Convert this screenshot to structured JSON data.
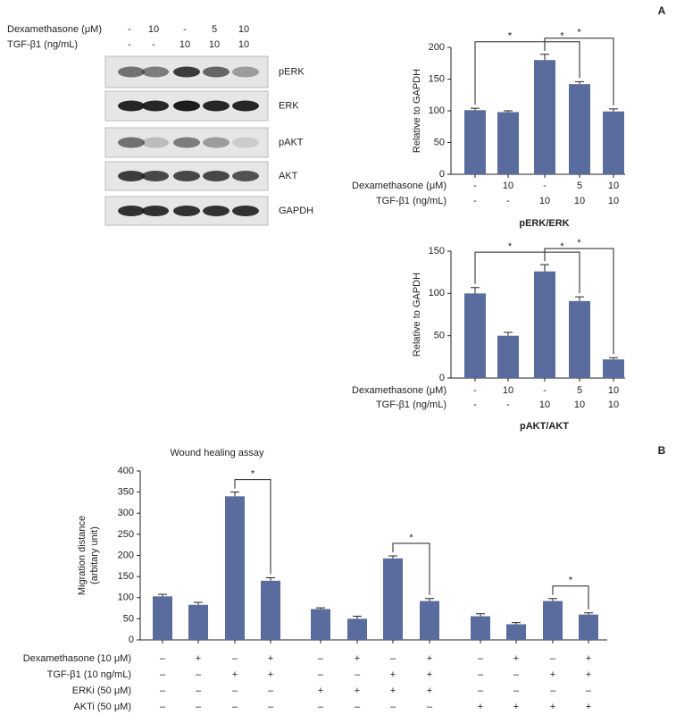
{
  "panel_labels": [
    "A",
    "B"
  ],
  "blot": {
    "conditions": [
      {
        "label": "Dexamethasone (μM)",
        "cells": [
          "-",
          "10",
          "-",
          "5",
          "10"
        ]
      },
      {
        "label": "TGF-β1 (ng/mL)",
        "cells": [
          "-",
          "-",
          "10",
          "10",
          "10"
        ]
      }
    ],
    "bands": [
      "pERK",
      "ERK",
      "pAKT",
      "AKT",
      "GAPDH"
    ]
  },
  "chart_data": [
    {
      "type": "bar",
      "xlabel": "pERK/ERK",
      "ylabel": "Relative to GAPDH",
      "values": [
        101,
        98,
        180,
        142,
        99
      ],
      "errors": [
        3,
        2,
        9,
        4,
        4
      ],
      "color": "#5a6b9d",
      "ylim": [
        0,
        200
      ],
      "yticks": [
        0,
        50,
        100,
        150,
        200
      ],
      "conditions": [
        {
          "label": "Dexamethasone (μM)",
          "cells": [
            "-",
            "10",
            "-",
            "5",
            "10"
          ]
        },
        {
          "label": "TGF-β1 (ng/mL)",
          "cells": [
            "-",
            "-",
            "10",
            "10",
            "10"
          ]
        }
      ],
      "significance": [
        {
          "bars": [
            0,
            2
          ],
          "label": "*"
        },
        {
          "bars": [
            2,
            3
          ],
          "label": "*"
        },
        {
          "bars": [
            2,
            4
          ],
          "label": "*"
        }
      ]
    },
    {
      "type": "bar",
      "xlabel": "pAKT/AKT",
      "ylabel": "Relative to GAPDH",
      "values": [
        100,
        50,
        126,
        91,
        22
      ],
      "errors": [
        7,
        4,
        8,
        5,
        2
      ],
      "color": "#5a6b9d",
      "ylim": [
        0,
        150
      ],
      "yticks": [
        0,
        50,
        100,
        150
      ],
      "conditions": [
        {
          "label": "Dexamethasone (μM)",
          "cells": [
            "-",
            "10",
            "-",
            "5",
            "10"
          ]
        },
        {
          "label": "TGF-β1 (ng/mL)",
          "cells": [
            "-",
            "-",
            "10",
            "10",
            "10"
          ]
        }
      ],
      "significance": [
        {
          "bars": [
            0,
            2
          ],
          "label": "*"
        },
        {
          "bars": [
            2,
            3
          ],
          "label": "*"
        },
        {
          "bars": [
            2,
            4
          ],
          "label": "*"
        }
      ]
    },
    {
      "type": "bar",
      "title": "Wound healing assay",
      "ylabel": [
        "Migration distance",
        "(arbitary unit)"
      ],
      "values": [
        103,
        83,
        340,
        140,
        73,
        50,
        193,
        92,
        56,
        37,
        92,
        60
      ],
      "errors": [
        5,
        6,
        10,
        7,
        3,
        6,
        6,
        6,
        6,
        4,
        6,
        4
      ],
      "color": "#5a6b9d",
      "ylim": [
        0,
        400
      ],
      "yticks": [
        0,
        50,
        100,
        150,
        200,
        250,
        300,
        350,
        400
      ],
      "conditions": [
        {
          "label": "Dexamethasone (10 μM)",
          "cells": [
            "–",
            "+",
            "–",
            "+",
            "–",
            "+",
            "–",
            "+",
            "–",
            "+",
            "–",
            "+"
          ]
        },
        {
          "label": "TGF-β1 (10 ng/mL)",
          "cells": [
            "–",
            "–",
            "+",
            "+",
            "–",
            "–",
            "+",
            "+",
            "–",
            "–",
            "+",
            "+"
          ]
        },
        {
          "label": "ERKi (50 μM)",
          "cells": [
            "–",
            "–",
            "–",
            "–",
            "+",
            "+",
            "+",
            "+",
            "–",
            "–",
            "–",
            "–"
          ]
        },
        {
          "label": "AKTi (50 μM)",
          "cells": [
            "–",
            "–",
            "–",
            "–",
            "–",
            "–",
            "–",
            "–",
            "+",
            "+",
            "+",
            "+"
          ]
        }
      ],
      "significance": [
        {
          "bars": [
            2,
            3
          ],
          "label": "*"
        },
        {
          "bars": [
            6,
            7
          ],
          "label": "*"
        },
        {
          "bars": [
            10,
            11
          ],
          "label": "*"
        }
      ]
    }
  ]
}
